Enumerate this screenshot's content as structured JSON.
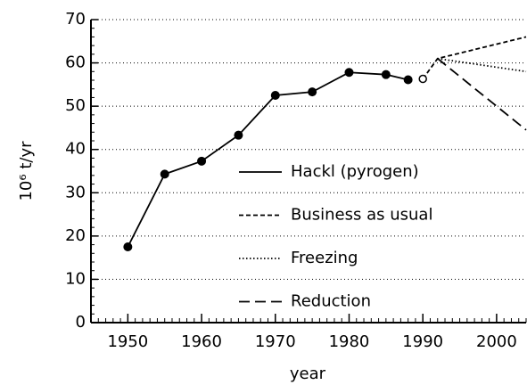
{
  "chart_data": {
    "type": "line",
    "xlabel": "year",
    "ylabel": "10⁶ t/yr",
    "xlim": [
      1945,
      2004
    ],
    "ylim": [
      0,
      70
    ],
    "xticks": [
      1950,
      1960,
      1970,
      1980,
      1990,
      2000
    ],
    "yticks": [
      0,
      10,
      20,
      30,
      40,
      50,
      60,
      70
    ],
    "grid": true,
    "legend": "center",
    "series": [
      {
        "name": "Hackl (pyrogen)",
        "style": "solid",
        "marker": "filled",
        "color": "#000000",
        "x": [
          1950,
          1955,
          1960,
          1965,
          1970,
          1975,
          1980,
          1985,
          1988
        ],
        "values": [
          17.5,
          34.3,
          37.3,
          43.3,
          52.5,
          53.3,
          57.8,
          57.3,
          56.1
        ]
      },
      {
        "name": "Business as usual",
        "style": "dashed",
        "color": "#000000",
        "x": [
          1990,
          1992,
          2004
        ],
        "values": [
          56.3,
          61,
          66
        ]
      },
      {
        "name": "Freezing",
        "style": "dotted",
        "color": "#000000",
        "x": [
          1992,
          2004
        ],
        "values": [
          61,
          58
        ]
      },
      {
        "name": "Reduction",
        "style": "longdash",
        "color": "#000000",
        "x": [
          1992,
          2004
        ],
        "values": [
          61,
          44.5
        ]
      }
    ],
    "open_point": {
      "x": 1990,
      "y": 56.3
    }
  }
}
